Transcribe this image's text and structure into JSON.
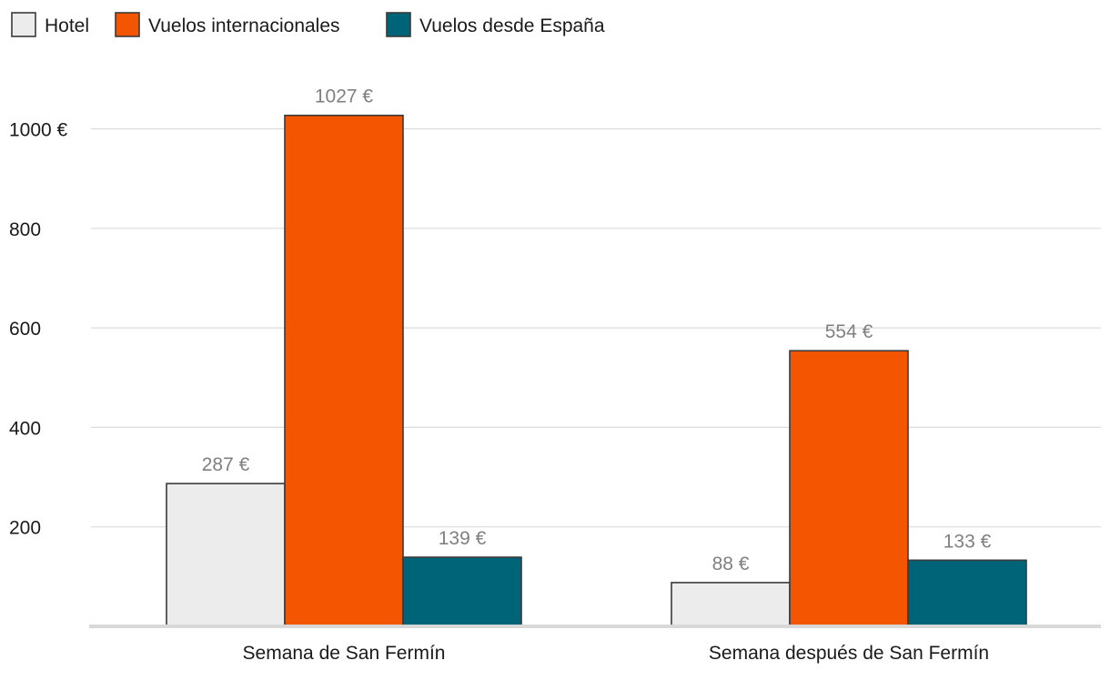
{
  "chart_data": {
    "type": "bar",
    "categories": [
      "Semana de San Fermín",
      "Semana después de San Fermín"
    ],
    "series": [
      {
        "name": "Hotel",
        "values": [
          287,
          88
        ],
        "labels": [
          "287 €",
          "88 €"
        ],
        "color": "#ececec"
      },
      {
        "name": "Vuelos internacionales",
        "values": [
          1027,
          554
        ],
        "labels": [
          "1027 €",
          "554 €"
        ],
        "color": "#f45500"
      },
      {
        "name": "Vuelos desde España",
        "values": [
          139,
          133
        ],
        "labels": [
          "139 €",
          "133 €"
        ],
        "color": "#006478"
      }
    ],
    "y_ticks": [
      {
        "value": 200,
        "label": "200"
      },
      {
        "value": 400,
        "label": "400"
      },
      {
        "value": 600,
        "label": "600"
      },
      {
        "value": 800,
        "label": "800"
      },
      {
        "value": 1000,
        "label": "1000 €"
      }
    ],
    "ylim": [
      0,
      1100
    ],
    "legend_position": "top-left",
    "grid": true,
    "colors": {
      "gridline": "#dcdcdc",
      "axis": "#d8d8d8",
      "bar_stroke": "#3a3a3a",
      "value_label": "#808080"
    }
  }
}
